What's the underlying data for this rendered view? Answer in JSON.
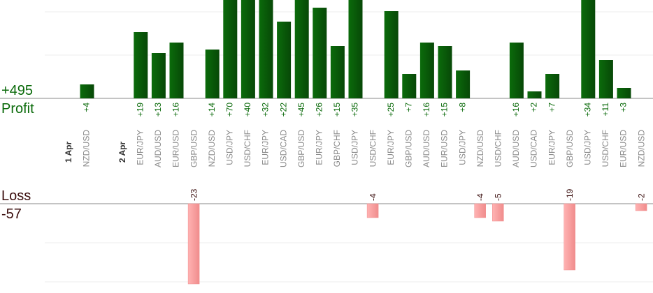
{
  "summary": {
    "total_profit": "+495",
    "profit_label": "Profit",
    "loss_label": "Loss",
    "total_loss": "-57"
  },
  "colors": {
    "profit_bar": "#0b6b0b",
    "profit_bar_dark": "#074807",
    "profit_text": "#0a6a0a",
    "loss_bar": "#ffb3b3",
    "loss_bar_edge": "#f08c8c",
    "loss_text": "#3a0d0d",
    "axis_line": "#888888",
    "grid": "#eeeeee",
    "category_text": "#8a8a8a",
    "date_text": "#333333"
  },
  "chart_data": {
    "type": "bar",
    "title": "",
    "xlabel": "",
    "ylabel": "",
    "grid": true,
    "ylim_profit": [
      0,
      23
    ],
    "ylim_loss": [
      -23,
      0
    ],
    "date_groups": [
      {
        "label": "1 Apr",
        "categories": [
          "NZD/USD"
        ]
      },
      {
        "label": "2 Apr",
        "categories": [
          "EUR/JPY",
          "AUD/USD",
          "EUR/USD",
          "GBP/USD",
          "NZD/USD",
          "USD/JPY",
          "USD/CHF",
          "EUR/JPY",
          "USD/CAD",
          "GBP/USD",
          "EUR/JPY",
          "GBP/CHF",
          "USD/JPY",
          "USD/CHF",
          "EUR/JPY",
          "GBP/USD",
          "AUD/USD",
          "EUR/USD",
          "USD/JPY",
          "NZD/USD",
          "USD/CHF",
          "AUD/USD",
          "USD/CAD",
          "EUR/JPY",
          "GBP/USD",
          "USD/JPY",
          "USD/CHF",
          "EUR/USD",
          "NZD/USD"
        ]
      }
    ],
    "categories": [
      "NZD/USD",
      "EUR/JPY",
      "AUD/USD",
      "EUR/USD",
      "GBP/USD",
      "NZD/USD",
      "USD/JPY",
      "USD/CHF",
      "EUR/JPY",
      "USD/CAD",
      "GBP/USD",
      "EUR/JPY",
      "GBP/CHF",
      "USD/JPY",
      "USD/CHF",
      "EUR/JPY",
      "GBP/USD",
      "AUD/USD",
      "EUR/USD",
      "USD/JPY",
      "NZD/USD",
      "USD/CHF",
      "AUD/USD",
      "USD/CAD",
      "EUR/JPY",
      "GBP/USD",
      "USD/JPY",
      "USD/CHF",
      "EUR/USD",
      "NZD/USD"
    ],
    "values": [
      4,
      19,
      13,
      16,
      -23,
      14,
      70,
      40,
      32,
      22,
      45,
      26,
      15,
      35,
      -4,
      25,
      7,
      16,
      15,
      8,
      -4,
      -5,
      16,
      2,
      7,
      -19,
      34,
      11,
      3,
      -2
    ],
    "labels": [
      "+4",
      "+19",
      "+13",
      "+16",
      "-23",
      "+14",
      "+70",
      "+40",
      "+32",
      "+22",
      "+45",
      "+26",
      "+15",
      "+35",
      "-4",
      "+25",
      "+7",
      "+16",
      "+15",
      "+8",
      "-4",
      "-5",
      "+16",
      "+2",
      "+7",
      "-19",
      "+34",
      "+11",
      "+3",
      "-2"
    ]
  }
}
